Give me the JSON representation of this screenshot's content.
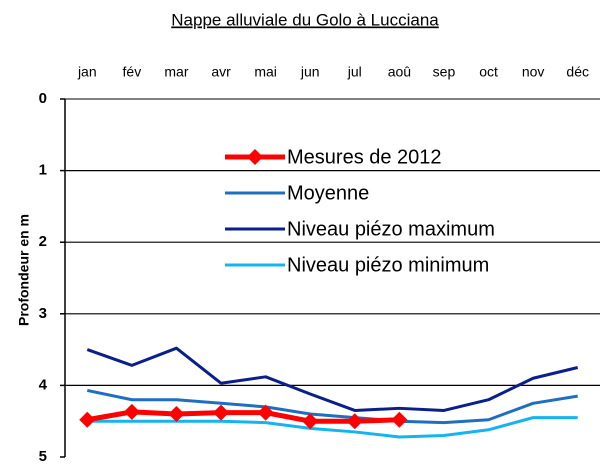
{
  "chart_data": {
    "type": "line",
    "title": "Nappe alluviale du Golo à Lucciana",
    "y_label": "Profondeur en m",
    "categories": [
      "jan",
      "fév",
      "mar",
      "avr",
      "mai",
      "jun",
      "jul",
      "aoû",
      "sep",
      "oct",
      "nov",
      "déc"
    ],
    "series": [
      {
        "name": "Mesures de 2012",
        "color": "#ff0000",
        "marker": "diamond",
        "values": [
          4.48,
          4.37,
          4.4,
          4.38,
          4.38,
          4.5,
          4.5,
          4.48,
          null,
          null,
          null,
          null
        ]
      },
      {
        "name": "Moyenne",
        "color": "#1f6fc0",
        "values": [
          4.07,
          4.2,
          4.2,
          4.25,
          4.3,
          4.4,
          4.45,
          4.5,
          4.52,
          4.48,
          4.25,
          4.15
        ]
      },
      {
        "name": "Niveau piézo maximum",
        "color": "#0a1e8c",
        "values": [
          3.5,
          3.72,
          3.48,
          3.97,
          3.88,
          4.12,
          4.35,
          4.32,
          4.35,
          4.2,
          3.9,
          3.75
        ]
      },
      {
        "name": "Niveau piézo minimum",
        "color": "#14b4f0",
        "values": [
          4.5,
          4.5,
          4.5,
          4.5,
          4.52,
          4.6,
          4.65,
          4.72,
          4.7,
          4.62,
          4.45,
          4.45
        ]
      }
    ],
    "ylim": [
      0,
      5
    ],
    "yticks": [
      0,
      1,
      2,
      3,
      4,
      5
    ],
    "y_inverted": true,
    "grid": true
  }
}
